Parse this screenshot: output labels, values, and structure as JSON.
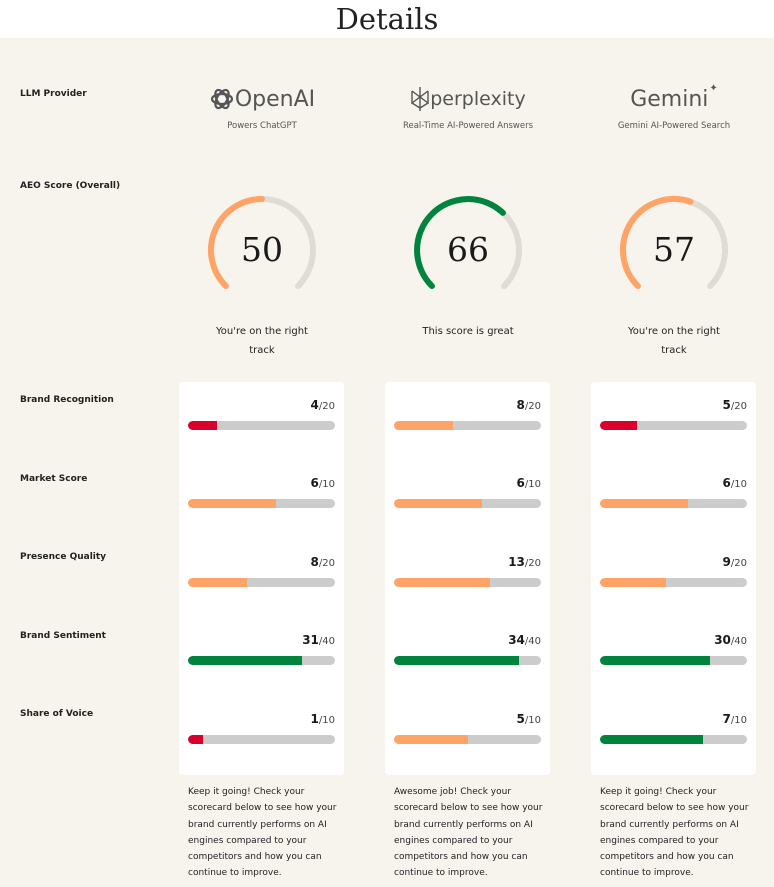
{
  "header": {
    "title": "Details"
  },
  "row_labels": {
    "provider": "LLM Provider",
    "aeo": "AEO Score (Overall)",
    "metrics": [
      "Brand Recognition",
      "Market Score",
      "Presence Quality",
      "Brand Sentiment",
      "Share of Voice"
    ]
  },
  "colors": {
    "orange": "#ffa466",
    "green": "#00843d",
    "red": "#d9002b",
    "track": "#cccccc",
    "gauge_track": "#e0dcd4"
  },
  "providers": [
    {
      "logo_text": "OpenAI",
      "logo_icon": "openai-logo",
      "subtitle": "Powers ChatGPT",
      "score": 50,
      "score_color": "#ffa466",
      "message": "You're on the right track",
      "metrics": [
        {
          "value": "4",
          "max": "/20",
          "v": 4,
          "m": 20,
          "color": "#d9002b"
        },
        {
          "value": "6",
          "max": "/10",
          "v": 6,
          "m": 10,
          "color": "#ffa466"
        },
        {
          "value": "8",
          "max": "/20",
          "v": 8,
          "m": 20,
          "color": "#ffa466"
        },
        {
          "value": "31",
          "max": "/40",
          "v": 31,
          "m": 40,
          "color": "#00843d"
        },
        {
          "value": "1",
          "max": "/10",
          "v": 1,
          "m": 10,
          "color": "#d9002b"
        }
      ],
      "description": "Keep it going! Check your scorecard below to see how your brand currently performs on AI engines compared to your competitors and how you can continue to improve."
    },
    {
      "logo_text": "perplexity",
      "logo_icon": "perplexity-logo",
      "subtitle": "Real-Time AI-Powered Answers",
      "score": 66,
      "score_color": "#00843d",
      "message": "This score is great",
      "metrics": [
        {
          "value": "8",
          "max": "/20",
          "v": 8,
          "m": 20,
          "color": "#ffa466"
        },
        {
          "value": "6",
          "max": "/10",
          "v": 6,
          "m": 10,
          "color": "#ffa466"
        },
        {
          "value": "13",
          "max": "/20",
          "v": 13,
          "m": 20,
          "color": "#ffa466"
        },
        {
          "value": "34",
          "max": "/40",
          "v": 34,
          "m": 40,
          "color": "#00843d"
        },
        {
          "value": "5",
          "max": "/10",
          "v": 5,
          "m": 10,
          "color": "#ffa466"
        }
      ],
      "description": "Awesome job! Check your scorecard below to see how your brand currently performs on AI engines compared to your competitors and how you can continue to improve."
    },
    {
      "logo_text": "Gemini",
      "logo_icon": "gemini-logo",
      "subtitle": "Gemini AI-Powered Search",
      "score": 57,
      "score_color": "#ffa466",
      "message": "You're on the right track",
      "metrics": [
        {
          "value": "5",
          "max": "/20",
          "v": 5,
          "m": 20,
          "color": "#d9002b"
        },
        {
          "value": "6",
          "max": "/10",
          "v": 6,
          "m": 10,
          "color": "#ffa466"
        },
        {
          "value": "9",
          "max": "/20",
          "v": 9,
          "m": 20,
          "color": "#ffa466"
        },
        {
          "value": "30",
          "max": "/40",
          "v": 30,
          "m": 40,
          "color": "#00843d"
        },
        {
          "value": "7",
          "max": "/10",
          "v": 7,
          "m": 10,
          "color": "#00843d"
        }
      ],
      "description": "Keep it going! Check your scorecard below to see how your brand currently performs on AI engines compared to your competitors and how you can continue to improve."
    }
  ]
}
